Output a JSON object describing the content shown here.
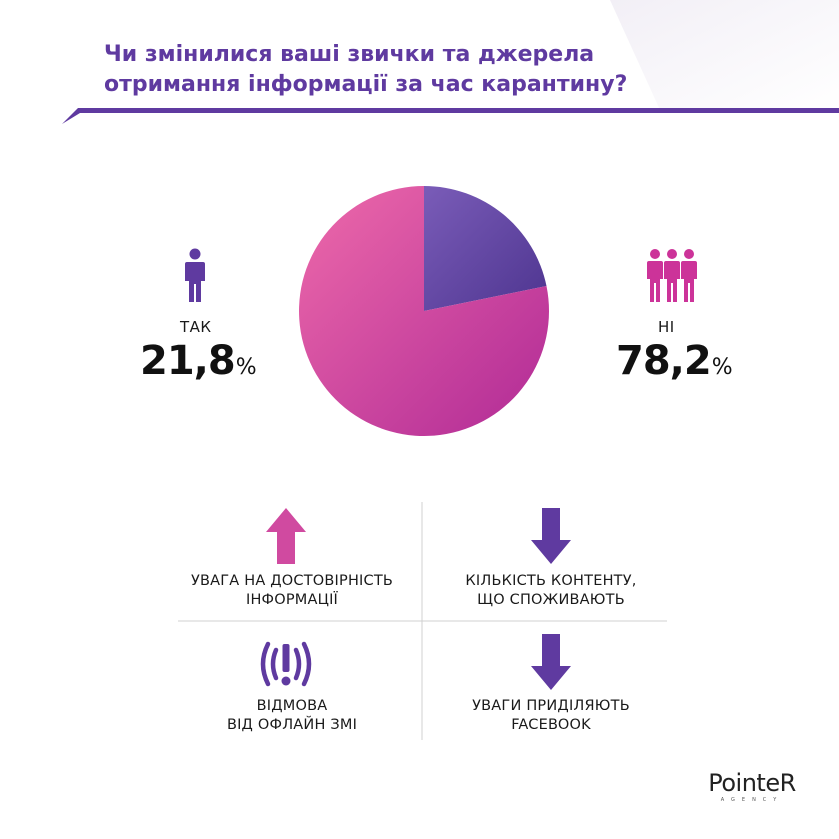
{
  "title": {
    "line1": "Чи змінилися ваші звички та джерела",
    "line2": "отримання інформації за час карантину?"
  },
  "colors": {
    "purple": "#5f3aa0",
    "pink": "#cc3399",
    "pink_light": "#e868a8",
    "purple_light": "#8060b8",
    "line": "#5f3aa0"
  },
  "chart_data": {
    "type": "pie",
    "slices": [
      {
        "label": "ТАК",
        "value": 21.8,
        "color": "#6a4aa8"
      },
      {
        "label": "НІ",
        "value": 78.2,
        "color": "#d04aa0"
      }
    ]
  },
  "yes": {
    "label": "ТАК",
    "value": "21,8",
    "unit": "%",
    "icon": "person-icon"
  },
  "no": {
    "label": "НІ",
    "value": "78,2",
    "unit": "%",
    "icon": "group-of-people-icon"
  },
  "items": [
    {
      "icon": "arrow-up-icon",
      "line1": "УВАГА НА ДОСТОВІРНІСТЬ",
      "line2": "ІНФОРМАЦІЇ"
    },
    {
      "icon": "arrow-down-icon",
      "line1": "КІЛЬКІСТЬ КОНТЕНТУ,",
      "line2": "ЩО СПОЖИВАЮТЬ"
    },
    {
      "icon": "warning-broadcast-icon",
      "line1": "ВІДМОВА",
      "line2": "ВІД ОФЛАЙН ЗМІ"
    },
    {
      "icon": "arrow-down-icon",
      "line1": "УВАГИ ПРИДІЛЯЮТЬ",
      "line2": "FACEBOOK"
    }
  ],
  "logo": {
    "name": "PointeR",
    "sub": "AGENCY"
  }
}
